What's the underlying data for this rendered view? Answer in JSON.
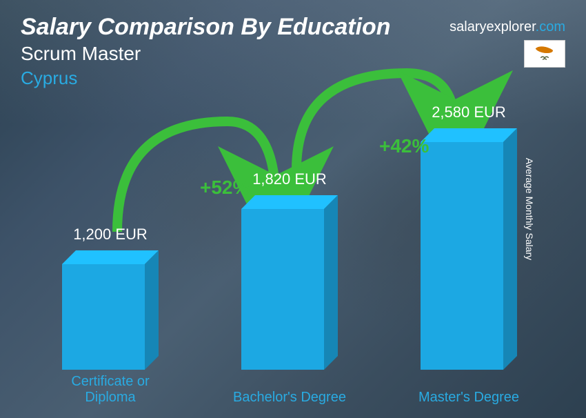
{
  "title": "Salary Comparison By Education",
  "subtitle": "Scrum Master",
  "country": "Cyprus",
  "brand_name": "salaryexplorer",
  "brand_domain": ".com",
  "ylabel": "Average Monthly Salary",
  "flag": {
    "country": "Cyprus",
    "bg": "#ffffff",
    "shape_color": "#d57800",
    "leaf_color": "#4e5b31"
  },
  "chart": {
    "type": "bar",
    "bar_color": "#1ca8e3",
    "label_color": "#29abe2",
    "value_color": "#ffffff",
    "label_fontsize": 20,
    "value_fontsize": 22,
    "max_value": 2580,
    "max_bar_height": 330,
    "bars": [
      {
        "label": "Certificate or Diploma",
        "value": 1200,
        "value_label": "1,200 EUR"
      },
      {
        "label": "Bachelor's Degree",
        "value": 1820,
        "value_label": "1,820 EUR"
      },
      {
        "label": "Master's Degree",
        "value": 2580,
        "value_label": "2,580 EUR"
      }
    ],
    "increases": [
      {
        "label": "+52%",
        "color": "#3bbf3b"
      },
      {
        "label": "+42%",
        "color": "#3bbf3b"
      }
    ],
    "arrow_color": "#3bbf3b"
  },
  "colors": {
    "title": "#ffffff",
    "subtitle": "#ffffff",
    "country": "#29abe2",
    "brand": "#ffffff",
    "ylabel": "#ffffff"
  }
}
